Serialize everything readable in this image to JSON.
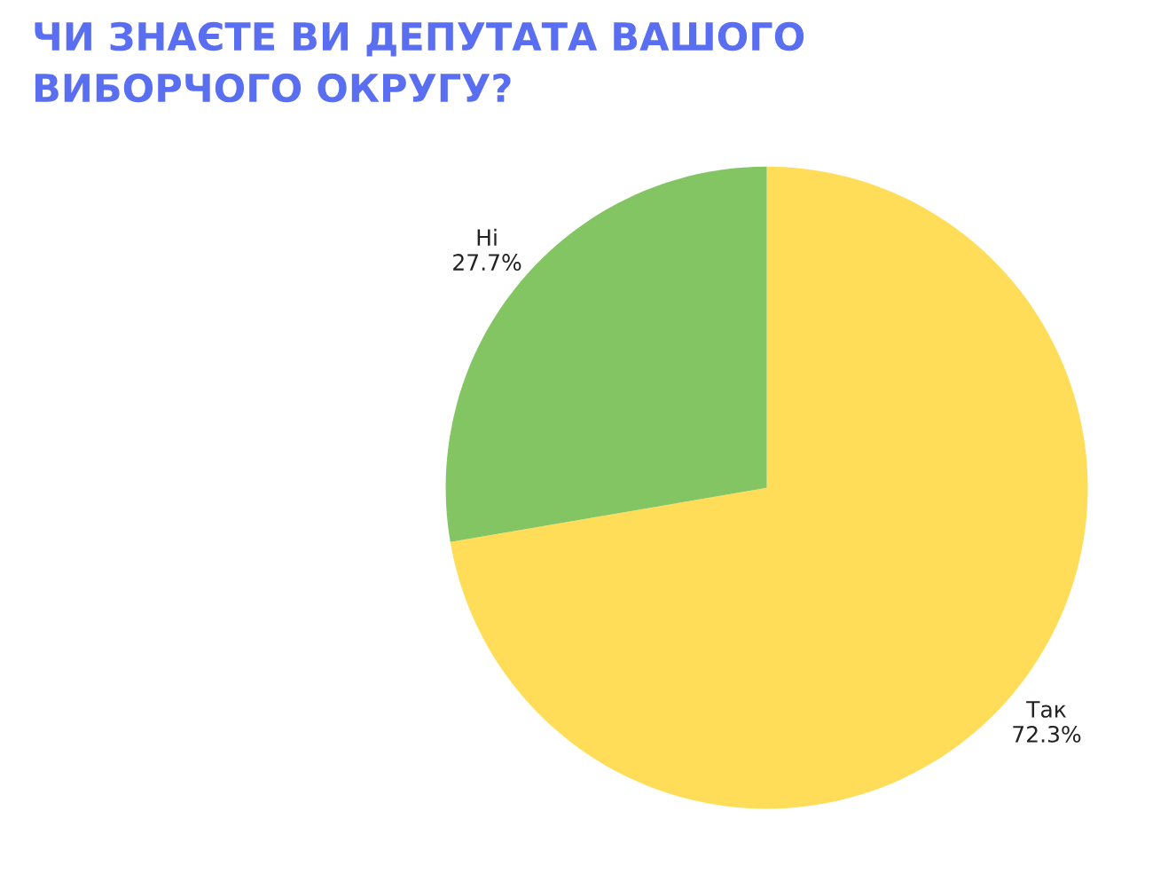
{
  "chart_data": {
    "type": "pie",
    "title": "ЧИ ЗНАЄТЕ ВИ ДЕПУТАТА ВАШОГО\nВИБОРЧОГО ОКРУГУ?",
    "categories": [
      "Так",
      "Ні"
    ],
    "values": [
      72.3,
      27.7
    ],
    "colors": [
      "#ffdd59",
      "#82c562"
    ],
    "value_labels": [
      "72.3%",
      "27.7%"
    ]
  }
}
